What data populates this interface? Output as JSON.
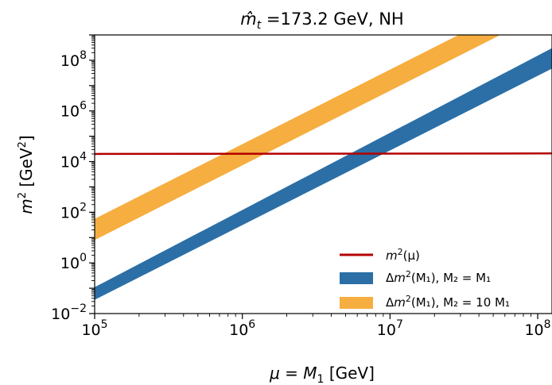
{
  "chart_data": {
    "type": "area",
    "title": {
      "base": "m̂",
      "sub": "t",
      "rest": " =173.2 GeV, NH"
    },
    "xlabel": {
      "pre": "μ = ",
      "base": "M",
      "sub": "1",
      "post": " [GeV]"
    },
    "ylabel": {
      "base": "m",
      "sup": "2",
      "mid": " [GeV",
      "sup2": "2",
      "post": "]"
    },
    "x_scale": "log",
    "y_scale": "log",
    "xlim": [
      100000,
      125000000
    ],
    "ylim": [
      0.01,
      1000000000
    ],
    "x_ticks": [
      {
        "value": 100000,
        "base": "10",
        "exp": "5"
      },
      {
        "value": 1000000,
        "base": "10",
        "exp": "6"
      },
      {
        "value": 10000000,
        "base": "10",
        "exp": "7"
      },
      {
        "value": 100000000,
        "base": "10",
        "exp": "8"
      }
    ],
    "y_ticks": [
      {
        "value": 0.01,
        "base": "10",
        "exp": "−2"
      },
      {
        "value": 1,
        "base": "10",
        "exp": "0"
      },
      {
        "value": 100,
        "base": "10",
        "exp": "2"
      },
      {
        "value": 10000,
        "base": "10",
        "exp": "4"
      },
      {
        "value": 1000000,
        "base": "10",
        "exp": "6"
      },
      {
        "value": 100000000,
        "base": "10",
        "exp": "8"
      }
    ],
    "grid": false,
    "legend_position": "lower-right",
    "series": [
      {
        "kind": "line",
        "color": "#b30000",
        "legend": {
          "pre": "",
          "base": "m",
          "sup": "2",
          "post": "(μ)"
        },
        "x": [
          100000,
          125000000
        ],
        "y": [
          20000,
          21000
        ]
      },
      {
        "kind": "band",
        "color": "#2b6fa6",
        "legend": {
          "pre": "Δ",
          "base": "m",
          "sup": "2",
          "post": "(M₁), M₂ = M₁"
        },
        "x": [
          100000,
          125000000
        ],
        "y_lower": [
          0.035,
          47000000
        ],
        "y_upper": [
          0.11,
          300000000
        ]
      },
      {
        "kind": "band",
        "color": "#f6ae40",
        "legend": {
          "pre": "Δ",
          "base": "m",
          "sup": "2",
          "post": "(M₁), M₂ = 10 M₁"
        },
        "x": [
          100000,
          125000000
        ],
        "y_lower": [
          8,
          10700000000
        ],
        "y_upper": [
          55,
          73000000000
        ]
      }
    ]
  }
}
